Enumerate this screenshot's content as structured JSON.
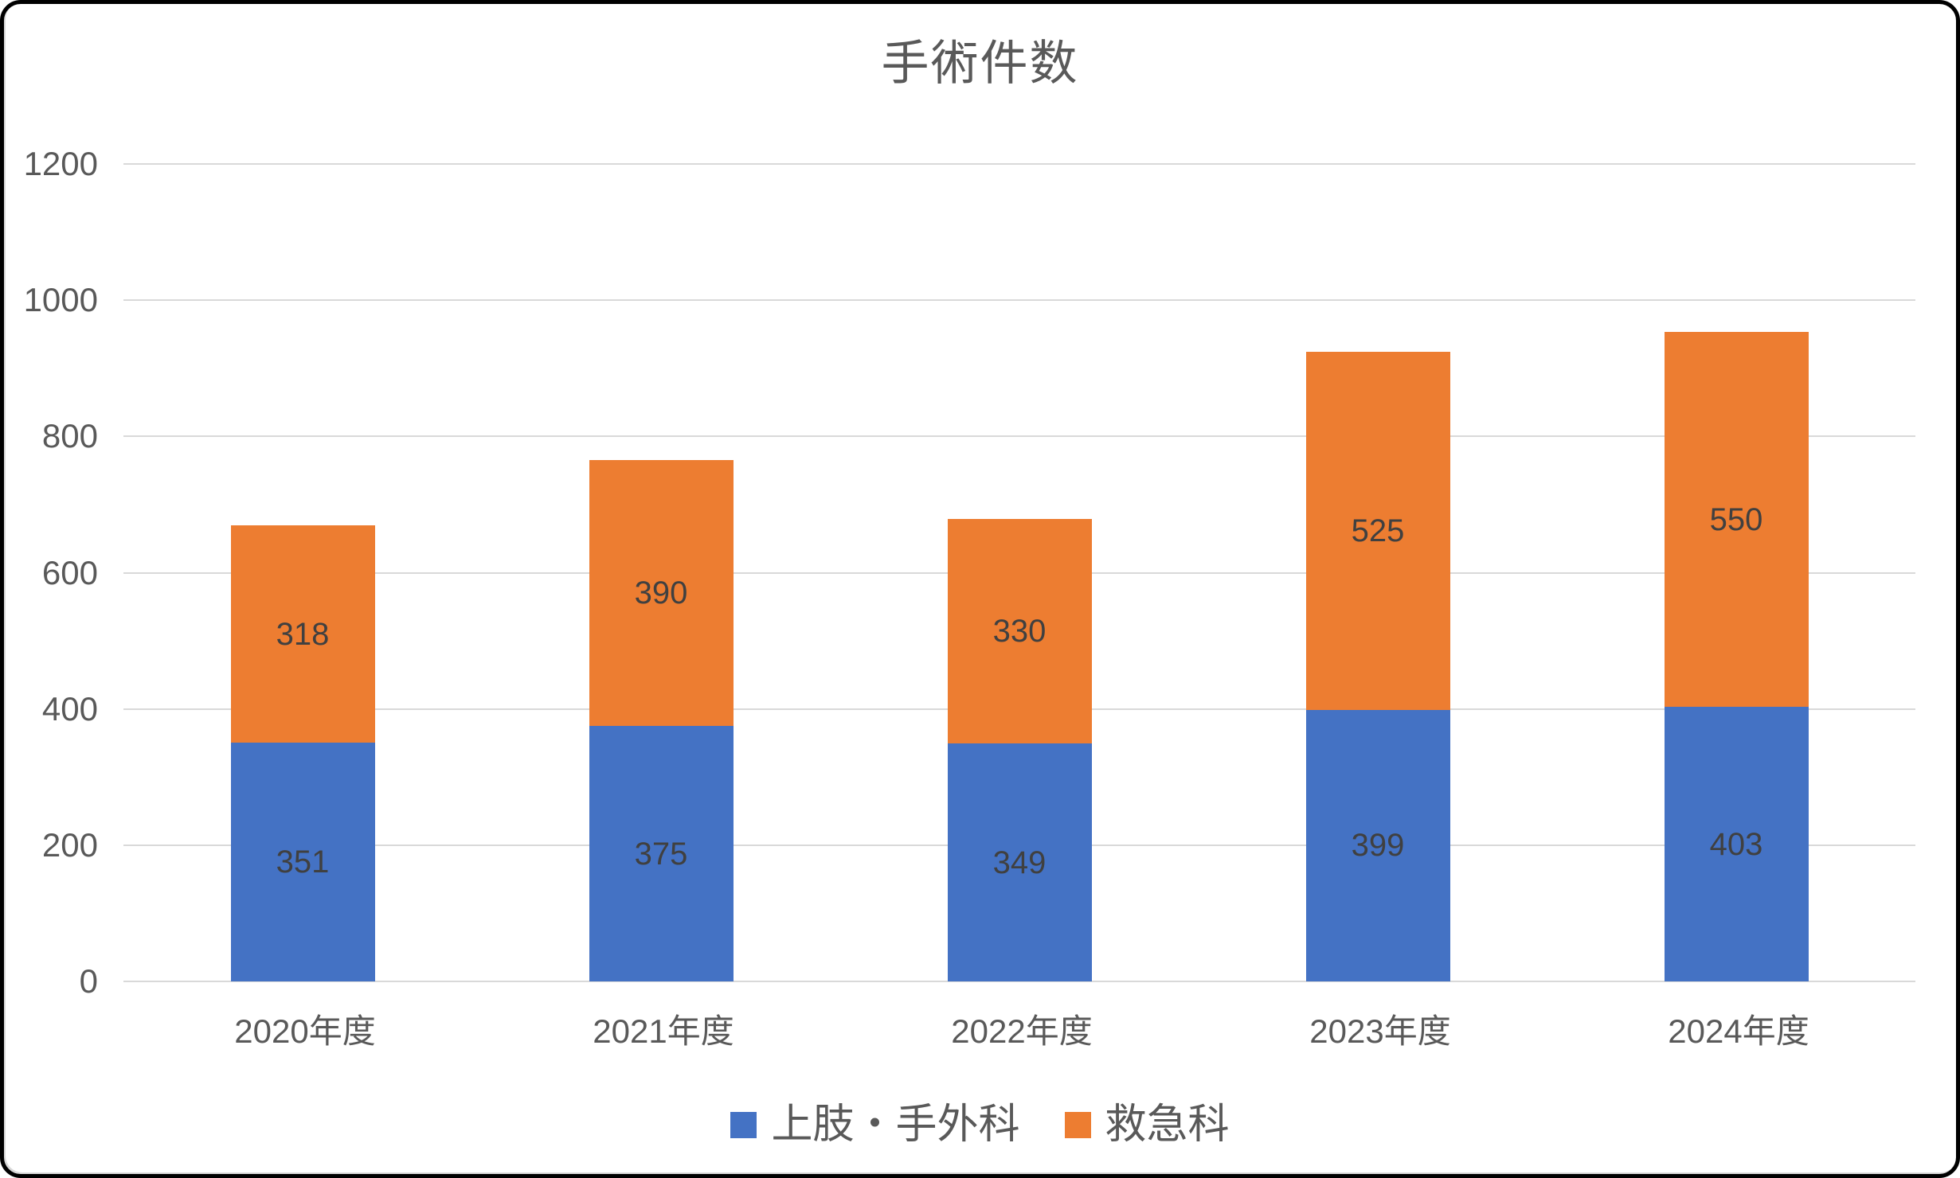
{
  "title": "手術件数",
  "colors": {
    "series_blue": "#4472C4",
    "series_orange": "#ED7D31",
    "gridline": "#D9D9D9",
    "axis_text": "#595959",
    "data_label_text": "#404040",
    "frame_border": "#000000",
    "background": "#FFFFFF"
  },
  "chart_data": {
    "type": "bar",
    "stacked": true,
    "title": "手術件数",
    "xlabel": "",
    "ylabel": "",
    "categories": [
      "2020年度",
      "2021年度",
      "2022年度",
      "2023年度",
      "2024年度"
    ],
    "series": [
      {
        "name": "上肢・手外科",
        "color": "#4472C4",
        "values": [
          351,
          375,
          349,
          399,
          403
        ]
      },
      {
        "name": "救急科",
        "color": "#ED7D31",
        "values": [
          318,
          390,
          330,
          525,
          550
        ]
      }
    ],
    "stack_totals": [
      669,
      765,
      679,
      924,
      953
    ],
    "ylim": [
      0,
      1200
    ],
    "y_ticks": [
      0,
      200,
      400,
      600,
      800,
      1000,
      1200
    ],
    "grid": true,
    "data_labels": "center",
    "legend_position": "bottom"
  }
}
